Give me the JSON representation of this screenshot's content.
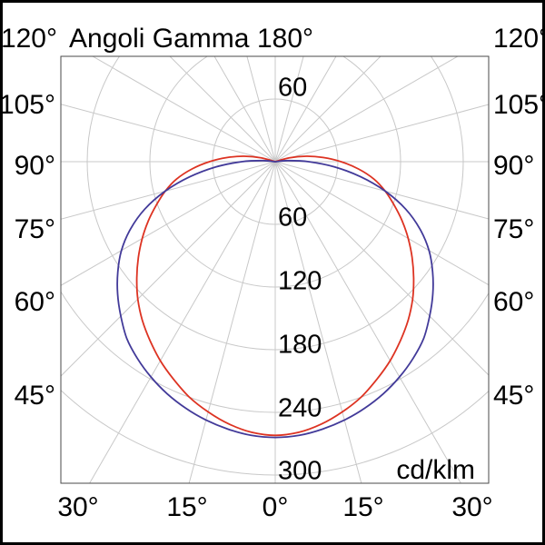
{
  "title": "Angoli Gamma",
  "unit": "cd/klm",
  "labels": {
    "top": {
      "left": "120°",
      "center": "180°",
      "right": "120°"
    },
    "left": [
      "105°",
      "90°",
      "75°",
      "60°",
      "45°"
    ],
    "right": [
      "105°",
      "90°",
      "75°",
      "60°",
      "45°"
    ],
    "bottom": [
      "30°",
      "15°",
      "0°",
      "15°",
      "30°"
    ],
    "ring_top": "60",
    "rings": [
      "60",
      "120",
      "180",
      "240",
      "300"
    ]
  },
  "colors": {
    "red_curve": "#dd3322",
    "blue_curve": "#423a99",
    "grid": "#c8c8c8",
    "plot_border": "#4a4a4a",
    "frame": "#000000",
    "text": "#000000"
  },
  "chart_data": {
    "type": "line",
    "subtype": "polar-photometric",
    "title": "Angoli Gamma",
    "units": "cd/klm",
    "angle_axis": {
      "zero_direction": "down",
      "symmetric_mirror": true,
      "spoke_step_deg": 15,
      "labeled_angles_deg": [
        0,
        15,
        30,
        45,
        60,
        75,
        90,
        105,
        120,
        180
      ]
    },
    "radial_axis": {
      "ticks": [
        60,
        120,
        180,
        240,
        300
      ],
      "min": 0,
      "max": 300,
      "grid": true
    },
    "legend_position": "none",
    "series": [
      {
        "name": "red-curve",
        "color_key": "red_curve",
        "points_gamma_cd": [
          [
            0,
            262
          ],
          [
            5,
            260
          ],
          [
            10,
            255
          ],
          [
            15,
            248
          ],
          [
            20,
            240
          ],
          [
            25,
            230
          ],
          [
            30,
            220
          ],
          [
            35,
            209
          ],
          [
            40,
            198
          ],
          [
            45,
            186
          ],
          [
            50,
            173
          ],
          [
            55,
            160
          ],
          [
            60,
            147
          ],
          [
            65,
            134
          ],
          [
            70,
            121
          ],
          [
            75,
            109
          ],
          [
            80,
            96
          ],
          [
            85,
            80
          ],
          [
            90,
            63
          ],
          [
            95,
            46
          ],
          [
            100,
            30
          ],
          [
            105,
            14
          ],
          [
            108,
            0
          ]
        ]
      },
      {
        "name": "blue-curve",
        "color_key": "blue_curve",
        "points_gamma_cd": [
          [
            0,
            264
          ],
          [
            5,
            263
          ],
          [
            10,
            260
          ],
          [
            15,
            256
          ],
          [
            20,
            251
          ],
          [
            25,
            245
          ],
          [
            30,
            238
          ],
          [
            35,
            230
          ],
          [
            40,
            221
          ],
          [
            45,
            209
          ],
          [
            50,
            197
          ],
          [
            55,
            184
          ],
          [
            60,
            170
          ],
          [
            65,
            153
          ],
          [
            70,
            133
          ],
          [
            75,
            109
          ],
          [
            80,
            83
          ],
          [
            85,
            57
          ],
          [
            90,
            32
          ],
          [
            95,
            12
          ],
          [
            98,
            0
          ]
        ]
      }
    ]
  }
}
